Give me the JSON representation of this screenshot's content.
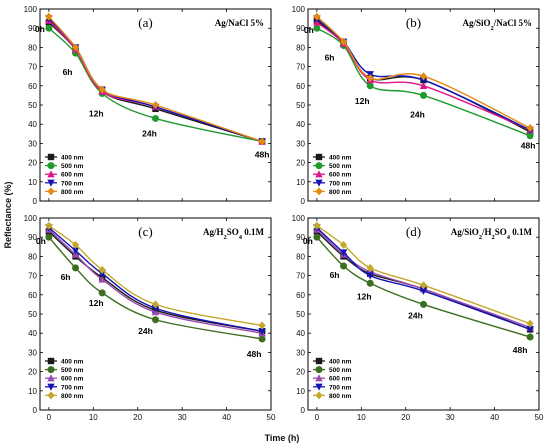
{
  "figure": {
    "shared_y_label": "Reflectance (%)",
    "shared_x_label": "Time (h)"
  },
  "chart_data": [
    {
      "type": "line",
      "panel": "(a)",
      "condition_label": [
        "Ag/NaCl 5%"
      ],
      "x": [
        0,
        6,
        12,
        24,
        48
      ],
      "xlim": [
        -2,
        50
      ],
      "ylim": [
        0,
        100
      ],
      "xticks": [
        0,
        10,
        20,
        30,
        40,
        50
      ],
      "yticks": [
        0,
        10,
        20,
        30,
        40,
        50,
        60,
        70,
        80,
        90,
        100
      ],
      "show_x_tick_labels": false,
      "smooth": true,
      "time_annotations": [
        {
          "text": "0h",
          "x": 0,
          "y": 90
        },
        {
          "text": "6h",
          "x": 6,
          "y": 77
        },
        {
          "text": "12h",
          "x": 12,
          "y": 56
        },
        {
          "text": "24h",
          "x": 24,
          "y": 43
        },
        {
          "text": "48h",
          "x": 48,
          "y": 30
        }
      ],
      "series": [
        {
          "name": "400 nm",
          "color": "#1a1a1a",
          "marker": "square",
          "values": [
            93,
            79,
            57,
            48,
            31
          ]
        },
        {
          "name": "500 nm",
          "color": "#1f9b2c",
          "marker": "circle",
          "values": [
            90,
            77,
            56,
            43,
            31
          ]
        },
        {
          "name": "600 nm",
          "color": "#e0158a",
          "marker": "triangle-up",
          "values": [
            94,
            79,
            57,
            49,
            31
          ]
        },
        {
          "name": "700 nm",
          "color": "#1414b4",
          "marker": "triangle-down",
          "values": [
            95,
            80,
            58,
            49,
            31
          ]
        },
        {
          "name": "800 nm",
          "color": "#e48a12",
          "marker": "diamond",
          "values": [
            96,
            80,
            58,
            50,
            31
          ]
        }
      ]
    },
    {
      "type": "line",
      "panel": "(b)",
      "condition_label": [
        "Ag/SiO",
        "2",
        "/NaCl 5%"
      ],
      "x": [
        0,
        6,
        12,
        24,
        48
      ],
      "xlim": [
        -2,
        50
      ],
      "ylim": [
        0,
        100
      ],
      "xticks": [
        0,
        10,
        20,
        30,
        40,
        50
      ],
      "yticks": [
        0,
        10,
        20,
        30,
        40,
        50,
        60,
        70,
        80,
        90,
        100
      ],
      "show_x_tick_labels": false,
      "smooth": true,
      "time_annotations": [
        {
          "text": "0h",
          "x": 0,
          "y": 90
        },
        {
          "text": "6h",
          "x": 6,
          "y": 81
        },
        {
          "text": "12h",
          "x": 12,
          "y": 60
        },
        {
          "text": "24h",
          "x": 24,
          "y": 55
        },
        {
          "text": "48h",
          "x": 48,
          "y": 34
        }
      ],
      "series": [
        {
          "name": "400 nm",
          "color": "#1a1a1a",
          "marker": "square",
          "values": [
            94,
            82,
            64,
            63,
            36
          ]
        },
        {
          "name": "500 nm",
          "color": "#1f9b2c",
          "marker": "circle",
          "values": [
            90,
            81,
            60,
            55,
            34
          ]
        },
        {
          "name": "600 nm",
          "color": "#e0158a",
          "marker": "triangle-up",
          "values": [
            93,
            82,
            63,
            60,
            37
          ]
        },
        {
          "name": "700 nm",
          "color": "#1414b4",
          "marker": "triangle-down",
          "values": [
            95,
            83,
            66,
            63,
            37
          ]
        },
        {
          "name": "800 nm",
          "color": "#e48a12",
          "marker": "diamond",
          "values": [
            96,
            83,
            64,
            65,
            38
          ]
        }
      ]
    },
    {
      "type": "line",
      "panel": "(c)",
      "condition_label": [
        "Ag/H",
        "2",
        "SO",
        "4",
        " 0.1M"
      ],
      "x": [
        0,
        6,
        12,
        24,
        48
      ],
      "xlim": [
        -2,
        50
      ],
      "ylim": [
        0,
        100
      ],
      "xticks": [
        0,
        10,
        20,
        30,
        40,
        50
      ],
      "yticks": [
        0,
        10,
        20,
        30,
        40,
        50,
        60,
        70,
        80,
        90,
        100
      ],
      "show_x_tick_labels": true,
      "smooth": true,
      "time_annotations": [
        {
          "text": "0h",
          "x": 0,
          "y": 90
        },
        {
          "text": "6h",
          "x": 6,
          "y": 74
        },
        {
          "text": "12h",
          "x": 12,
          "y": 61
        },
        {
          "text": "24h",
          "x": 24,
          "y": 47
        },
        {
          "text": "48h",
          "x": 48,
          "y": 37
        }
      ],
      "series": [
        {
          "name": "400 nm",
          "color": "#1a1a1a",
          "marker": "square",
          "values": [
            93,
            80,
            69,
            52,
            41
          ]
        },
        {
          "name": "500 nm",
          "color": "#3b6e1e",
          "marker": "circle",
          "values": [
            90,
            74,
            61,
            47,
            37
          ]
        },
        {
          "name": "600 nm",
          "color": "#9b4ab0",
          "marker": "triangle-up",
          "values": [
            94,
            81,
            68,
            51,
            40
          ]
        },
        {
          "name": "700 nm",
          "color": "#1414b4",
          "marker": "triangle-down",
          "values": [
            95,
            83,
            71,
            53,
            41
          ]
        },
        {
          "name": "800 nm",
          "color": "#c4a82a",
          "marker": "diamond",
          "values": [
            96,
            86,
            73,
            55,
            44
          ]
        }
      ]
    },
    {
      "type": "line",
      "panel": "(d)",
      "condition_label": [
        "Ag/SiO",
        "2",
        "/H",
        "2",
        "SO",
        "4",
        " 0.1M"
      ],
      "x": [
        0,
        6,
        12,
        24,
        48
      ],
      "xlim": [
        -2,
        50
      ],
      "ylim": [
        0,
        100
      ],
      "xticks": [
        0,
        10,
        20,
        30,
        40,
        50
      ],
      "yticks": [
        0,
        10,
        20,
        30,
        40,
        50,
        60,
        70,
        80,
        90,
        100
      ],
      "show_x_tick_labels": true,
      "smooth": true,
      "time_annotations": [
        {
          "text": "0h",
          "x": 0,
          "y": 90
        },
        {
          "text": "6h",
          "x": 6,
          "y": 75
        },
        {
          "text": "12h",
          "x": 12,
          "y": 66
        },
        {
          "text": "24h",
          "x": 24,
          "y": 55
        },
        {
          "text": "48h",
          "x": 48,
          "y": 38
        }
      ],
      "series": [
        {
          "name": "400 nm",
          "color": "#1a1a1a",
          "marker": "square",
          "values": [
            93,
            80,
            71,
            63,
            42
          ]
        },
        {
          "name": "500 nm",
          "color": "#3b6e1e",
          "marker": "circle",
          "values": [
            90,
            75,
            66,
            55,
            38
          ]
        },
        {
          "name": "600 nm",
          "color": "#9b4ab0",
          "marker": "triangle-up",
          "values": [
            94,
            81,
            72,
            63,
            43
          ]
        },
        {
          "name": "700 nm",
          "color": "#1414b4",
          "marker": "triangle-down",
          "values": [
            95,
            82,
            70,
            62,
            42
          ]
        },
        {
          "name": "800 nm",
          "color": "#c4a82a",
          "marker": "diamond",
          "values": [
            96,
            86,
            74,
            65,
            45
          ]
        }
      ]
    }
  ]
}
